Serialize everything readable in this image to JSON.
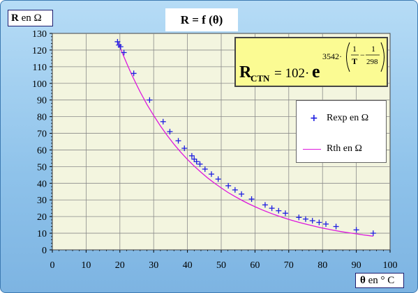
{
  "chart_data": {
    "type": "scatter",
    "title": "R = f (θ)",
    "xlabel_bold": "θ",
    "xlabel_rest": " en ° C",
    "ylabel_bold": "R",
    "ylabel_rest": " en  Ω",
    "xlim": [
      0,
      100
    ],
    "ylim": [
      0,
      130
    ],
    "x_ticks": [
      "0",
      "10",
      "20",
      "30",
      "40",
      "50",
      "60",
      "70",
      "80",
      "90",
      "100"
    ],
    "y_ticks": [
      "0",
      "10",
      "20",
      "30",
      "40",
      "50",
      "60",
      "70",
      "80",
      "90",
      "100",
      "110",
      "120",
      "130"
    ],
    "grid": true,
    "legend_position": "right",
    "formula": {
      "lhs_main": "R",
      "lhs_sub": "CTN",
      "rhs_coef": "= 102·",
      "base": "e",
      "exp_coef": "3542·",
      "frac1_num": "1",
      "frac1_den": "T",
      "minus": "−",
      "frac2_num": "1",
      "frac2_den": "298"
    },
    "series": [
      {
        "name": "Rexp en Ω",
        "marker": "plus",
        "color": "#1e1ee0",
        "x": [
          19.3,
          19.7,
          20.2,
          21.2,
          24.1,
          28.8,
          32.8,
          34.8,
          37.3,
          39.1,
          41.3,
          42.0,
          42.7,
          43.7,
          45.2,
          47.1,
          49.1,
          52.1,
          54.1,
          56.0,
          59.0,
          63.0,
          65.0,
          67.0,
          69.0,
          73.0,
          75.0,
          77.0,
          79.0,
          81.0,
          84.0,
          90.0,
          95.0
        ],
        "y": [
          125,
          123,
          122,
          118.5,
          106,
          90,
          77,
          71,
          65.5,
          61,
          56.5,
          54.5,
          53,
          51.5,
          48.5,
          45.5,
          42.5,
          38.5,
          36,
          33.5,
          30.5,
          27,
          25,
          23.5,
          22,
          19.5,
          18.5,
          17.5,
          16.5,
          15.5,
          14,
          12,
          10
        ]
      },
      {
        "name": "Rth en Ω",
        "marker": "line",
        "color": "#dd16dd",
        "x": [
          19.5,
          20,
          21,
          22,
          23,
          24,
          25,
          26,
          28,
          30,
          32,
          34,
          36,
          38,
          40,
          42,
          44,
          46,
          48,
          50,
          52,
          54,
          56,
          58,
          60,
          62,
          64,
          66,
          68,
          70,
          72,
          74,
          76,
          78,
          80,
          82,
          84,
          86,
          88,
          90,
          92,
          94,
          95
        ],
        "y": [
          124.5,
          122,
          116.9,
          112.1,
          107.5,
          103.1,
          98.9,
          94.9,
          87.4,
          80.7,
          74.4,
          68.7,
          63.5,
          58.7,
          54.3,
          50.3,
          46.6,
          43.2,
          40.1,
          37.2,
          34.5,
          32.1,
          29.9,
          27.8,
          25.9,
          24.1,
          22.5,
          21.0,
          19.6,
          18.3,
          17.1,
          16.0,
          15.0,
          14.0,
          13.1,
          12.3,
          11.5,
          10.8,
          10.2,
          9.6,
          9.0,
          8.5,
          8.2
        ]
      }
    ]
  }
}
